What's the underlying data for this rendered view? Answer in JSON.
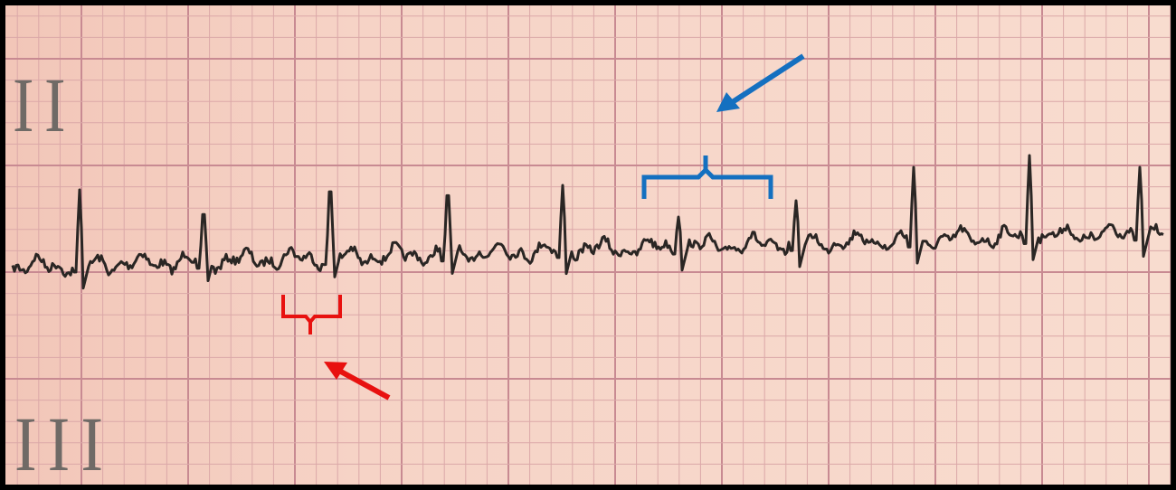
{
  "leads": {
    "top": "II",
    "bottom": "III"
  }
}
